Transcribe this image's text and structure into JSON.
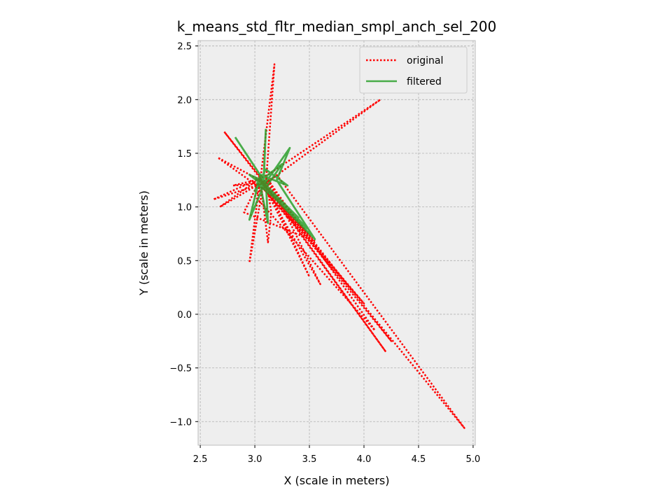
{
  "chart_data": {
    "type": "line",
    "title": "k_means_std_fltr_median_smpl_anch_sel_200",
    "xlabel": "X (scale in meters)",
    "ylabel": "Y (scale in meters)",
    "xlim": [
      2.48,
      5.02
    ],
    "ylim": [
      -1.22,
      2.55
    ],
    "xticks": [
      2.5,
      3.0,
      3.5,
      4.0,
      4.5,
      5.0
    ],
    "xtick_labels": [
      "2.5",
      "3.0",
      "3.5",
      "4.0",
      "4.5",
      "5.0"
    ],
    "yticks": [
      -1.0,
      -0.5,
      0.0,
      0.5,
      1.0,
      1.5,
      2.0,
      2.5
    ],
    "ytick_labels": [
      "−1.0",
      "−0.5",
      "0.0",
      "0.5",
      "1.0",
      "1.5",
      "2.0",
      "2.5"
    ],
    "grid": true,
    "legend_position": "top-right",
    "background_color": "#eeeeee",
    "series": [
      {
        "name": "original",
        "color": "#ff0000",
        "style": "dotted",
        "points": [
          [
            3.05,
            1.25
          ],
          [
            3.18,
            2.33
          ],
          [
            3.1,
            1.2
          ],
          [
            2.72,
            1.7
          ],
          [
            3.05,
            1.28
          ],
          [
            2.95,
            0.48
          ],
          [
            3.08,
            1.22
          ],
          [
            2.62,
            1.07
          ],
          [
            3.12,
            1.3
          ],
          [
            4.15,
            2.0
          ],
          [
            3.1,
            1.22
          ],
          [
            2.66,
            1.46
          ],
          [
            3.06,
            1.17
          ],
          [
            3.2,
            1.3
          ],
          [
            4.92,
            -1.06
          ],
          [
            3.08,
            1.22
          ],
          [
            4.2,
            -0.35
          ],
          [
            3.12,
            1.18
          ],
          [
            3.5,
            0.35
          ],
          [
            3.05,
            1.27
          ],
          [
            2.68,
            1.0
          ],
          [
            3.1,
            1.25
          ],
          [
            4.25,
            -0.25
          ],
          [
            3.08,
            1.2
          ],
          [
            3.6,
            0.28
          ],
          [
            3.13,
            1.25
          ],
          [
            3.0,
            1.1
          ],
          [
            4.1,
            -0.15
          ],
          [
            3.1,
            1.28
          ],
          [
            3.15,
            0.95
          ],
          [
            3.12,
            0.67
          ],
          [
            3.05,
            1.25
          ],
          [
            4.0,
            0.1
          ],
          [
            3.07,
            1.18
          ],
          [
            3.3,
            0.9
          ],
          [
            3.45,
            0.8
          ],
          [
            3.1,
            1.22
          ],
          [
            2.8,
            1.2
          ],
          [
            3.05,
            1.26
          ],
          [
            2.9,
            0.95
          ],
          [
            3.55,
            0.68
          ],
          [
            3.08,
            1.2
          ]
        ]
      },
      {
        "name": "filtered",
        "color": "#2ca02c",
        "style": "solid",
        "points": [
          [
            2.82,
            1.65
          ],
          [
            3.08,
            1.25
          ],
          [
            3.1,
            1.72
          ],
          [
            3.08,
            1.2
          ],
          [
            3.32,
            1.55
          ],
          [
            3.2,
            1.25
          ],
          [
            3.55,
            0.7
          ],
          [
            3.05,
            1.22
          ],
          [
            3.0,
            1.15
          ],
          [
            3.1,
            1.35
          ],
          [
            3.3,
            1.2
          ],
          [
            3.05,
            1.3
          ],
          [
            2.95,
            0.88
          ],
          [
            3.1,
            1.25
          ],
          [
            3.12,
            0.85
          ],
          [
            3.05,
            1.2
          ],
          [
            3.28,
            1.0
          ],
          [
            3.0,
            1.28
          ],
          [
            3.48,
            0.8
          ],
          [
            3.06,
            1.25
          ],
          [
            2.95,
            1.3
          ],
          [
            3.1,
            1.18
          ],
          [
            3.25,
            1.4
          ],
          [
            3.02,
            1.22
          ],
          [
            3.4,
            0.9
          ],
          [
            3.05,
            1.25
          ]
        ]
      }
    ]
  }
}
